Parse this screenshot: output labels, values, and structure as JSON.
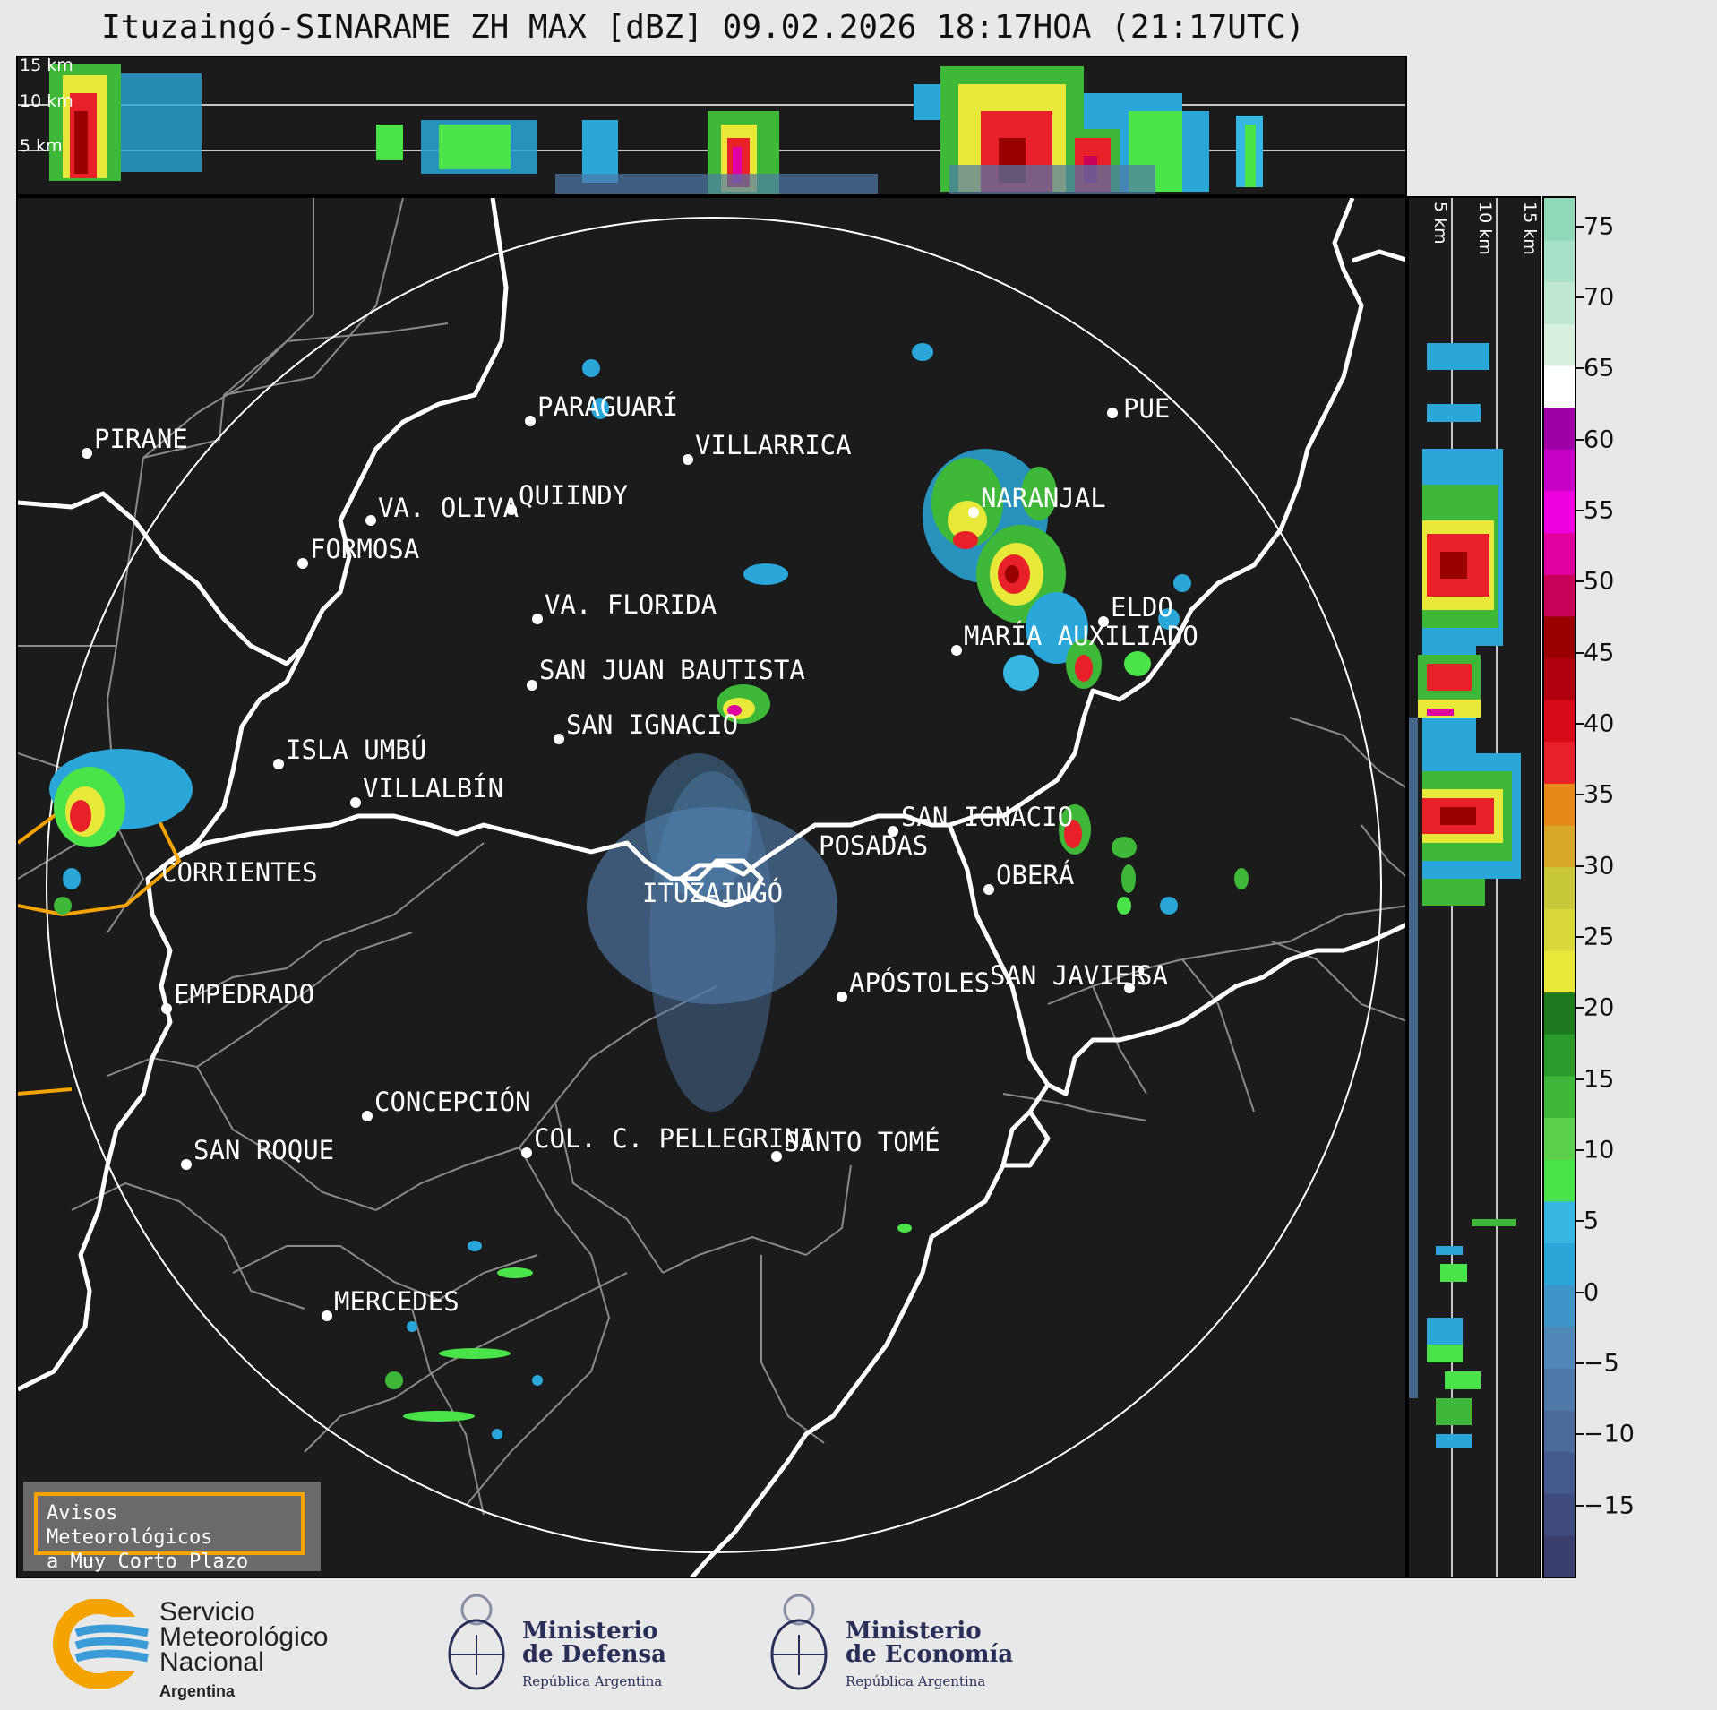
{
  "title": "Ituzaingó-SINARAME ZH MAX [dBZ] 09.02.2026 18:17HOA (21:17UTC)",
  "top_panel": {
    "height_labels": [
      "15 km",
      "10 km",
      "5 km"
    ]
  },
  "side_panel": {
    "height_labels": [
      "5 km",
      "10 km",
      "15 km"
    ]
  },
  "colorbar": {
    "ticks": [
      "75",
      "70",
      "65",
      "60",
      "55",
      "50",
      "45",
      "40",
      "35",
      "30",
      "25",
      "20",
      "15",
      "10",
      "5",
      "0",
      "−5",
      "−10",
      "−15"
    ],
    "range": [
      -20,
      77
    ],
    "colors": [
      "#3a3f6e",
      "#3f4b7c",
      "#455a8c",
      "#4b6a9c",
      "#4f79a8",
      "#4f87b6",
      "#3e96c8",
      "#2aa6d8",
      "#36b6e0",
      "#4ae34a",
      "#5ad04a",
      "#3fb83a",
      "#2a9a2a",
      "#1f7a1f",
      "#e8e83a",
      "#d8d83a",
      "#c8c83a",
      "#d8a82a",
      "#e8881a",
      "#e8202a",
      "#d80a1a",
      "#b00010",
      "#9a0000",
      "#c8005a",
      "#e000a0",
      "#f000e0",
      "#c800c8",
      "#a000a8",
      "#ffffff",
      "#d8f0e0",
      "#bfe8d0",
      "#a8e0c8",
      "#90d8b8"
    ]
  },
  "cities": [
    {
      "name": "PIRANE"
    },
    {
      "name": "PARAGUARÍ"
    },
    {
      "name": "VILLARRICA"
    },
    {
      "name": "QUIINDY"
    },
    {
      "name": "VA. OLIVA"
    },
    {
      "name": "FORMOSA"
    },
    {
      "name": "NARANJAL"
    },
    {
      "name": "PUE"
    },
    {
      "name": "VA. FLORIDA"
    },
    {
      "name": "ELDO"
    },
    {
      "name": "MARÍA AUXILIADO"
    },
    {
      "name": "SAN JUAN BAUTISTA"
    },
    {
      "name": "SAN IGNACIO"
    },
    {
      "name": "ISLA UMBÚ"
    },
    {
      "name": "VILLALBÍN"
    },
    {
      "name": "SAN IGNACIO"
    },
    {
      "name": "POSADAS"
    },
    {
      "name": "CORRIENTES"
    },
    {
      "name": "ITUZAINGÓ"
    },
    {
      "name": "OBERÁ"
    },
    {
      "name": "EMPEDRADO"
    },
    {
      "name": "APÓSTOLES"
    },
    {
      "name": "SAN JAVIER"
    },
    {
      "name": "SA"
    },
    {
      "name": "CONCEPCIÓN"
    },
    {
      "name": "COL. C. PELLEGRINI"
    },
    {
      "name": "SANTO TOMÉ"
    },
    {
      "name": "SAN ROQUE"
    },
    {
      "name": "MERCEDES"
    }
  ],
  "warning_legend": {
    "line1": "Avisos Meteorológicos",
    "line2": "a Muy Corto Plazo",
    "border_color": "#f4a300"
  },
  "footer": {
    "smn": {
      "line1": "Servicio",
      "line2": "Meteorológico",
      "line3": "Nacional",
      "sub": "Argentina"
    },
    "defensa": {
      "line1": "Ministerio",
      "line2": "de Defensa",
      "sub": "República Argentina"
    },
    "economia": {
      "line1": "Ministerio",
      "line2": "de Economía",
      "sub": "República Argentina"
    }
  }
}
